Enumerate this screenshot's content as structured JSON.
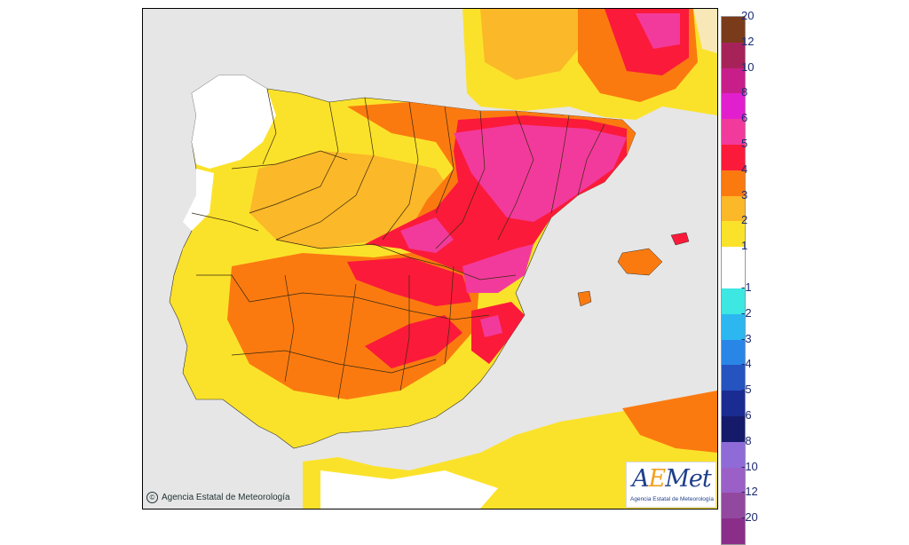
{
  "map": {
    "credit": "Agencia Estatal de Meteorología",
    "logo_word_a": "A",
    "logo_word_e": "E",
    "logo_word_rest": "Met",
    "logo_subtitle": "Agencia Estatal de Meteorología"
  },
  "legend": {
    "entries": [
      {
        "label": "20",
        "color": "#7a3b1a"
      },
      {
        "label": "12",
        "color": "#a8225a"
      },
      {
        "label": "10",
        "color": "#c81e8a"
      },
      {
        "label": "8",
        "color": "#e21fcf"
      },
      {
        "label": "6",
        "color": "#f23a9c"
      },
      {
        "label": "5",
        "color": "#fb1a3a"
      },
      {
        "label": "4",
        "color": "#fb7a10"
      },
      {
        "label": "3",
        "color": "#fbb828"
      },
      {
        "label": "2",
        "color": "#fbe22a"
      },
      {
        "label": "1",
        "color": "#ffffff"
      },
      {
        "label": "-1",
        "color": "#3de7e2"
      },
      {
        "label": "-2",
        "color": "#2cb7f0"
      },
      {
        "label": "-3",
        "color": "#2a86e6"
      },
      {
        "label": "-4",
        "color": "#2553c0"
      },
      {
        "label": "-5",
        "color": "#1a2c92"
      },
      {
        "label": "-6",
        "color": "#151b6a"
      },
      {
        "label": "-8",
        "color": "#8f6bd8"
      },
      {
        "label": "-10",
        "color": "#9b5fc8"
      },
      {
        "label": "-12",
        "color": "#93489f"
      },
      {
        "label": "-20",
        "color": "#8a2e8a"
      }
    ],
    "gap_color": "#ffffff"
  }
}
